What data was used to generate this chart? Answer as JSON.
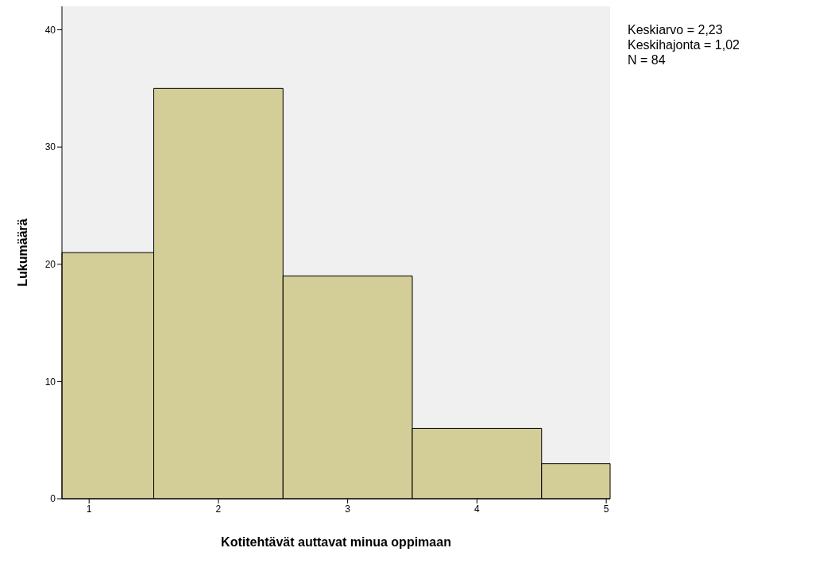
{
  "chart_data": {
    "type": "histogram",
    "xlabel": "Kotitehtävät auttavat minua oppimaan",
    "ylabel": "Lukumäärä",
    "bins": [
      0.79,
      1.5,
      2.5,
      3.5,
      4.5,
      5.03
    ],
    "values": [
      21,
      35,
      19,
      6,
      3
    ],
    "color": "#d3ce97",
    "xlim": [
      0.79,
      5.03
    ],
    "xticks": [
      1,
      2,
      3,
      4,
      5
    ],
    "ylim": [
      0,
      42
    ],
    "yticks": [
      0,
      10,
      20,
      30,
      40
    ],
    "annotations": [
      "Keskiarvo = 2,23",
      "Keskihajonta = 1,02",
      "N = 84"
    ]
  }
}
